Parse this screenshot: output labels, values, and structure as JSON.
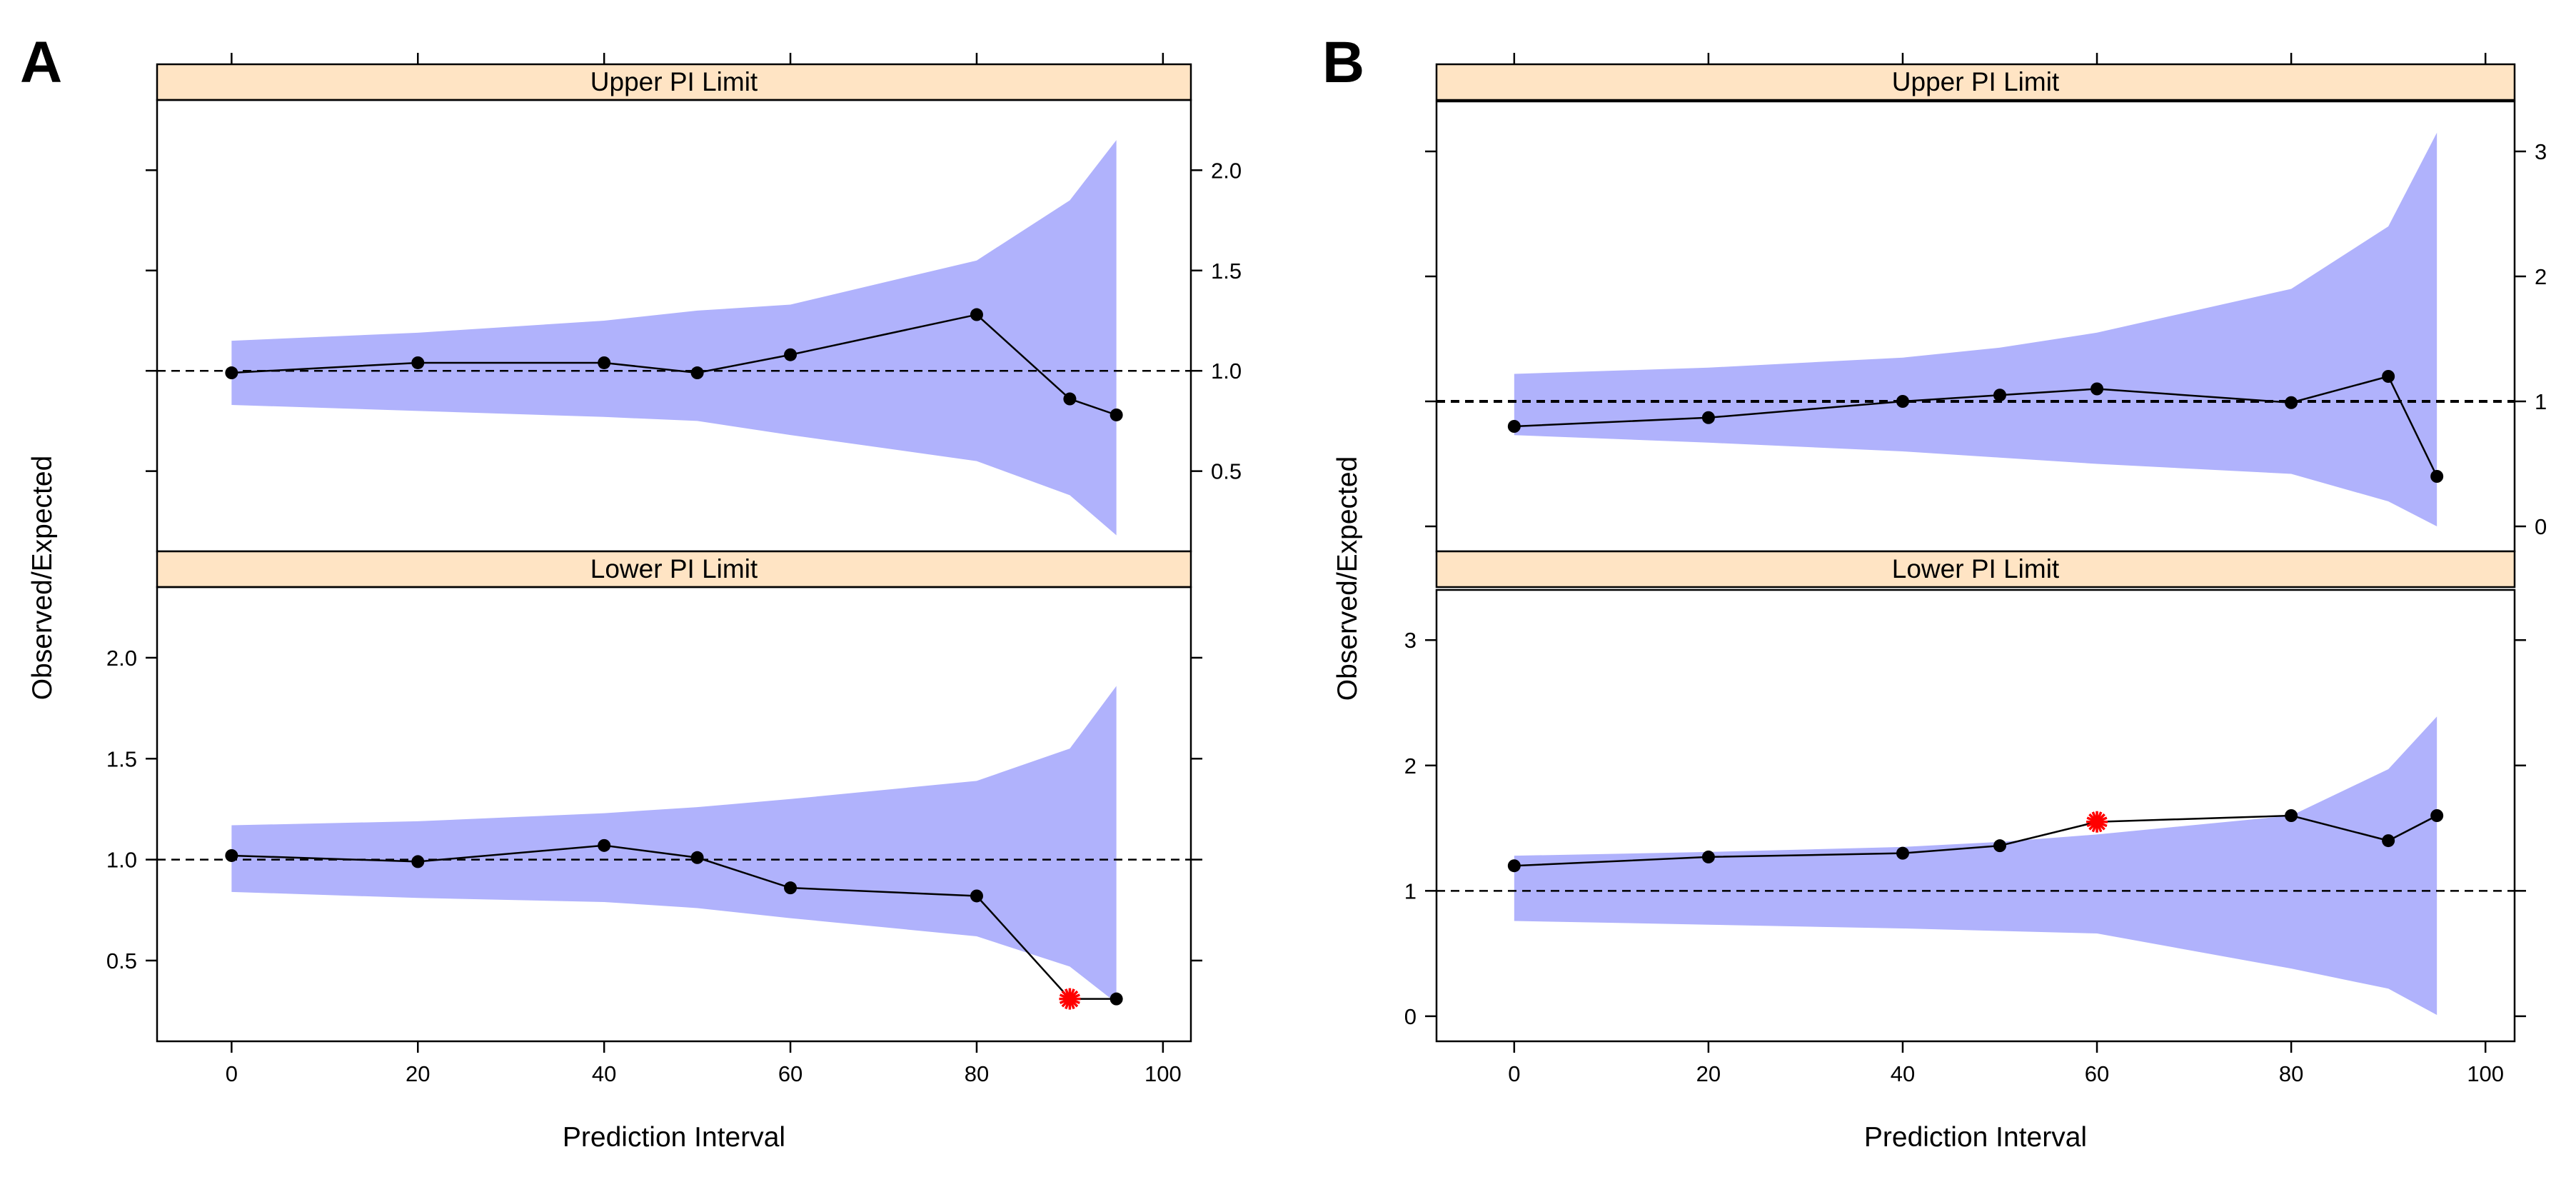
{
  "chart_data": [
    {
      "panel": "A",
      "type": "line",
      "xlabel": "Prediction Interval",
      "ylabel": "Observed/Expected",
      "xlim": [
        -8,
        103
      ],
      "xticks": [
        0,
        20,
        40,
        60,
        80,
        100
      ],
      "facets": [
        {
          "title": "Upper PI Limit",
          "ylim": [
            0.1,
            2.35
          ],
          "yticks": [
            0.5,
            1.0,
            1.5,
            2.0
          ],
          "ytick_labels": [
            "0.5",
            "1.0",
            "1.5",
            "2.0"
          ],
          "ytick_side": "right",
          "reference": 1.0,
          "x": [
            0,
            20,
            40,
            50,
            60,
            80,
            90,
            95
          ],
          "observed": [
            0.99,
            1.04,
            1.04,
            0.99,
            1.08,
            1.28,
            0.86,
            0.78
          ],
          "band_upper": [
            1.15,
            1.19,
            1.25,
            1.3,
            1.33,
            1.55,
            1.85,
            2.15
          ],
          "band_lower": [
            0.83,
            0.8,
            0.77,
            0.75,
            0.68,
            0.55,
            0.38,
            0.18
          ],
          "flagged": []
        },
        {
          "title": "Lower PI Limit",
          "ylim": [
            0.1,
            2.35
          ],
          "yticks": [
            0.5,
            1.0,
            1.5,
            2.0
          ],
          "ytick_labels": [
            "0.5",
            "1.0",
            "1.5",
            "2.0"
          ],
          "ytick_side": "left",
          "reference": 1.0,
          "x": [
            0,
            20,
            40,
            50,
            60,
            80,
            90,
            95
          ],
          "observed": [
            1.02,
            0.99,
            1.07,
            1.01,
            0.86,
            0.82,
            0.31,
            0.31
          ],
          "band_upper": [
            1.17,
            1.19,
            1.23,
            1.26,
            1.3,
            1.39,
            1.55,
            1.86
          ],
          "band_lower": [
            0.84,
            0.81,
            0.79,
            0.76,
            0.71,
            0.62,
            0.47,
            0.29
          ],
          "flagged": [
            6
          ]
        }
      ]
    },
    {
      "panel": "B",
      "type": "line",
      "xlabel": "Prediction Interval",
      "ylabel": "Observed/Expected",
      "xlim": [
        -8,
        103
      ],
      "xticks": [
        0,
        20,
        40,
        60,
        80,
        100
      ],
      "facets": [
        {
          "title": "Upper PI Limit",
          "ylim": [
            -0.2,
            3.4
          ],
          "yticks": [
            0,
            1,
            2,
            3
          ],
          "ytick_labels": [
            "0",
            "1",
            "2",
            "3"
          ],
          "ytick_side": "right",
          "reference": 1.0,
          "x": [
            0,
            20,
            40,
            50,
            60,
            80,
            90,
            95
          ],
          "observed": [
            0.8,
            0.87,
            1.0,
            1.05,
            1.1,
            0.99,
            1.2,
            0.4
          ],
          "band_upper": [
            1.22,
            1.27,
            1.35,
            1.43,
            1.55,
            1.9,
            2.4,
            3.15
          ],
          "band_lower": [
            0.73,
            0.67,
            0.6,
            0.55,
            0.5,
            0.42,
            0.2,
            0.0
          ],
          "flagged": []
        },
        {
          "title": "Lower PI Limit",
          "ylim": [
            -0.2,
            3.4
          ],
          "yticks": [
            0,
            1,
            2,
            3
          ],
          "ytick_labels": [
            "0",
            "1",
            "2",
            "3"
          ],
          "ytick_side": "left",
          "reference": 1.0,
          "x": [
            0,
            20,
            40,
            50,
            60,
            80,
            90,
            95
          ],
          "observed": [
            1.2,
            1.27,
            1.3,
            1.36,
            1.55,
            1.6,
            1.4,
            1.6
          ],
          "band_upper": [
            1.28,
            1.31,
            1.35,
            1.39,
            1.45,
            1.6,
            1.97,
            2.39
          ],
          "band_lower": [
            0.76,
            0.73,
            0.7,
            0.68,
            0.66,
            0.38,
            0.22,
            0.01
          ],
          "flagged": [
            4
          ]
        }
      ]
    }
  ]
}
